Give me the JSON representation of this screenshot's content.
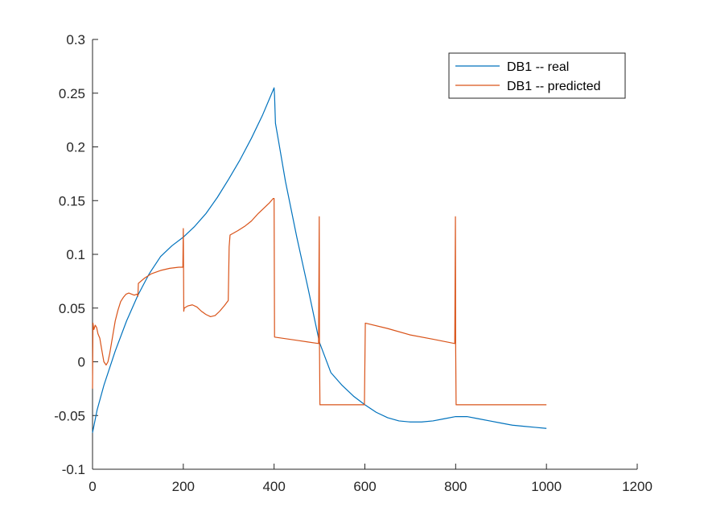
{
  "chart_data": {
    "type": "line",
    "title": "",
    "xlabel": "",
    "ylabel": "",
    "xlim": [
      0,
      1200
    ],
    "ylim": [
      -0.1,
      0.3
    ],
    "x_ticks": [
      0,
      200,
      400,
      600,
      800,
      1000,
      1200
    ],
    "x_tick_labels": [
      "0",
      "200",
      "400",
      "600",
      "800",
      "1000",
      "1200"
    ],
    "y_ticks": [
      -0.1,
      -0.05,
      0,
      0.05,
      0.1,
      0.15,
      0.2,
      0.25,
      0.3
    ],
    "y_tick_labels": [
      "-0.1",
      "-0.05",
      "0",
      "0.05",
      "0.1",
      "0.15",
      "0.2",
      "0.25",
      "0.3"
    ],
    "grid": false,
    "legend": {
      "placement": "top-right"
    },
    "series": [
      {
        "name": "DB1 -- real",
        "color": "#0072BD",
        "x": [
          0,
          10,
          25,
          50,
          75,
          100,
          125,
          150,
          175,
          200,
          225,
          250,
          275,
          300,
          325,
          350,
          375,
          400,
          401,
          403,
          410,
          425,
          450,
          475,
          500,
          525,
          550,
          575,
          600,
          625,
          650,
          675,
          700,
          725,
          750,
          775,
          800,
          825,
          850,
          875,
          900,
          925,
          950,
          975,
          1000
        ],
        "y": [
          -0.066,
          -0.045,
          -0.022,
          0.01,
          0.038,
          0.062,
          0.082,
          0.098,
          0.108,
          0.116,
          0.126,
          0.138,
          0.153,
          0.17,
          0.188,
          0.208,
          0.23,
          0.255,
          0.248,
          0.222,
          0.205,
          0.168,
          0.116,
          0.068,
          0.018,
          -0.01,
          -0.022,
          -0.032,
          -0.04,
          -0.047,
          -0.052,
          -0.055,
          -0.056,
          -0.056,
          -0.055,
          -0.053,
          -0.051,
          -0.051,
          -0.053,
          -0.055,
          -0.057,
          -0.059,
          -0.06,
          -0.061,
          -0.062
        ]
      },
      {
        "name": "DB1 -- predicted",
        "color": "#D95319",
        "x": [
          0,
          1,
          3,
          6,
          9,
          12,
          16,
          20,
          25,
          30,
          34,
          38,
          42,
          46,
          50,
          56,
          62,
          68,
          74,
          80,
          86,
          92,
          98,
          100,
          101,
          115,
          130,
          150,
          170,
          190,
          199,
          200,
          200.5,
          201,
          202,
          210,
          220,
          230,
          240,
          250,
          260,
          270,
          280,
          290,
          299,
          301,
          303,
          320,
          335,
          350,
          365,
          380,
          390,
          398,
          400,
          401,
          450,
          498,
          499.5,
          500,
          501,
          599,
          601,
          650,
          700,
          750,
          798,
          799.5,
          800,
          801,
          1000
        ],
        "y": [
          -0.025,
          0.036,
          0.03,
          0.034,
          0.032,
          0.026,
          0.022,
          0.012,
          0.0,
          -0.003,
          0.0,
          0.008,
          0.018,
          0.028,
          0.038,
          0.048,
          0.056,
          0.06,
          0.063,
          0.064,
          0.063,
          0.062,
          0.063,
          0.061,
          0.073,
          0.078,
          0.082,
          0.085,
          0.087,
          0.088,
          0.088,
          0.124,
          0.088,
          0.047,
          0.05,
          0.052,
          0.053,
          0.051,
          0.047,
          0.044,
          0.042,
          0.043,
          0.047,
          0.052,
          0.057,
          0.107,
          0.118,
          0.122,
          0.126,
          0.131,
          0.138,
          0.144,
          0.148,
          0.152,
          0.152,
          0.023,
          0.02,
          0.017,
          0.135,
          0.016,
          -0.04,
          -0.04,
          0.036,
          0.031,
          0.025,
          0.021,
          0.017,
          0.135,
          0.017,
          -0.04,
          -0.04
        ]
      }
    ]
  }
}
